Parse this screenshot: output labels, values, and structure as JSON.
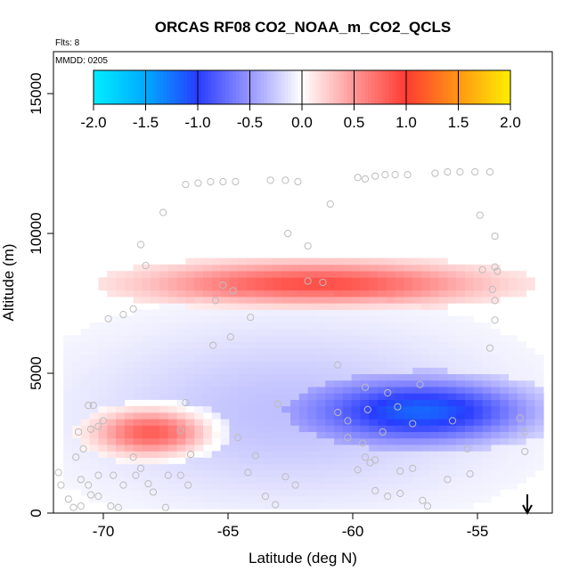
{
  "chart_data": {
    "type": "heatmap",
    "title": "ORCAS RF08 CO2_NOAA_m_CO2_QCLS",
    "flights_label": "Flts: 8",
    "date_label": "MMDD: 0205",
    "xlabel": "Latitude (deg N)",
    "ylabel": "Altitude (m)",
    "xlim": [
      -72,
      -52
    ],
    "ylim": [
      0,
      16500
    ],
    "xticks": [
      -70,
      -65,
      -60,
      -55
    ],
    "xtick_labels": [
      "-70",
      "-65",
      "-60",
      "-55"
    ],
    "yticks": [
      0,
      5000,
      10000,
      15000
    ],
    "ytick_labels": [
      "0",
      "5000",
      "10000",
      "15000"
    ],
    "colorbar": {
      "range": [
        -2.0,
        2.0
      ],
      "ticks": [
        -2.0,
        -1.5,
        -1.0,
        -0.5,
        0.0,
        0.5,
        1.0,
        1.5,
        2.0
      ],
      "tick_labels": [
        "-2.0",
        "-1.5",
        "-1.0",
        "-0.5",
        "0.0",
        "0.5",
        "1.0",
        "1.5",
        "2.0"
      ]
    },
    "marker_lat": -53,
    "features": [
      {
        "name": "upper-positive-band",
        "lat": [
          -68.5,
          -54.5
        ],
        "alt": [
          7400,
          9000
        ],
        "value": 0.9
      },
      {
        "name": "lower-positive-band",
        "lat": [
          -70.5,
          -65.5
        ],
        "alt": [
          2000,
          3800
        ],
        "value": 1.0
      },
      {
        "name": "mid-negative-layer",
        "lat": [
          -61.5,
          -52.5
        ],
        "alt": [
          2500,
          4800
        ],
        "value": -1.0
      },
      {
        "name": "weak-negative-background",
        "lat": [
          -71.5,
          -53.5
        ],
        "alt": [
          200,
          7000
        ],
        "value": -0.3
      }
    ],
    "sample_points": [
      [
        -66.7,
        11750
      ],
      [
        -66.2,
        11800
      ],
      [
        -65.7,
        11850
      ],
      [
        -65.2,
        11850
      ],
      [
        -64.7,
        11850
      ],
      [
        -63.3,
        11900
      ],
      [
        -62.7,
        11900
      ],
      [
        -62.2,
        11850
      ],
      [
        -59.5,
        11950
      ],
      [
        -59.1,
        12050
      ],
      [
        -58.7,
        12100
      ],
      [
        -58.3,
        12100
      ],
      [
        -57.8,
        12100
      ],
      [
        -56.7,
        12150
      ],
      [
        -56.2,
        12200
      ],
      [
        -55.7,
        12200
      ],
      [
        -55.1,
        12200
      ],
      [
        -54.5,
        12200
      ],
      [
        -59.8,
        12000
      ],
      [
        -67.6,
        10750
      ],
      [
        -60.9,
        11050
      ],
      [
        -54.9,
        10650
      ],
      [
        -54.3,
        9900
      ],
      [
        -68.5,
        9600
      ],
      [
        -62.6,
        10000
      ],
      [
        -61.8,
        9550
      ],
      [
        -68.3,
        8850
      ],
      [
        -65.2,
        8150
      ],
      [
        -64.8,
        7950
      ],
      [
        -61.8,
        8300
      ],
      [
        -61.2,
        8250
      ],
      [
        -54.8,
        8700
      ],
      [
        -54.3,
        8800
      ],
      [
        -54.4,
        8000
      ],
      [
        -54.3,
        7600
      ],
      [
        -54.3,
        6900
      ],
      [
        -54.5,
        5900
      ],
      [
        -64.1,
        7000
      ],
      [
        -65.5,
        7600
      ],
      [
        -69.2,
        7100
      ],
      [
        -69.8,
        6950
      ],
      [
        -68.8,
        7300
      ],
      [
        -64.9,
        6300
      ],
      [
        -65.6,
        6000
      ],
      [
        -60.6,
        5300
      ],
      [
        -57.3,
        4600
      ],
      [
        -58.6,
        4300
      ],
      [
        -59.5,
        4500
      ],
      [
        -59.4,
        3700
      ],
      [
        -58.2,
        3800
      ],
      [
        -60.6,
        3600
      ],
      [
        -63.0,
        3900
      ],
      [
        -60.2,
        3300
      ],
      [
        -57.6,
        3200
      ],
      [
        -60.2,
        2700
      ],
      [
        -59.6,
        2500
      ],
      [
        -58.8,
        2900
      ],
      [
        -56.0,
        3300
      ],
      [
        -53.1,
        2900
      ],
      [
        -53.1,
        2200
      ],
      [
        -59.5,
        2000
      ],
      [
        -59.1,
        1900
      ],
      [
        -59.8,
        1550
      ],
      [
        -58.1,
        1500
      ],
      [
        -57.6,
        1600
      ],
      [
        -55.3,
        1400
      ],
      [
        -56.2,
        1200
      ],
      [
        -59.3,
        1800
      ],
      [
        -55.4,
        2300
      ],
      [
        -64.2,
        1450
      ],
      [
        -63.9,
        2050
      ],
      [
        -64.6,
        2700
      ],
      [
        -62.7,
        1300
      ],
      [
        -62.3,
        1000
      ],
      [
        -59.1,
        800
      ],
      [
        -58.6,
        600
      ],
      [
        -58.1,
        700
      ],
      [
        -57.2,
        450
      ],
      [
        -57.0,
        250
      ],
      [
        -63.1,
        300
      ],
      [
        -63.5,
        600
      ],
      [
        -66.5,
        2100
      ],
      [
        -66.6,
        1000
      ],
      [
        -66.9,
        1350
      ],
      [
        -66.7,
        3950
      ],
      [
        -67.4,
        1350
      ],
      [
        -68.2,
        1050
      ],
      [
        -68.7,
        1350
      ],
      [
        -69.2,
        1000
      ],
      [
        -69.6,
        1350
      ],
      [
        -70.2,
        1350
      ],
      [
        -70.6,
        1000
      ],
      [
        -70.5,
        650
      ],
      [
        -70.9,
        1200
      ],
      [
        -71.1,
        2000
      ],
      [
        -70.8,
        2300
      ],
      [
        -70.5,
        3000
      ],
      [
        -70.2,
        3100
      ],
      [
        -70.0,
        3300
      ],
      [
        -70.4,
        3850
      ],
      [
        -70.6,
        3850
      ],
      [
        -71.0,
        2900
      ],
      [
        -71.8,
        1450
      ],
      [
        -71.7,
        1000
      ],
      [
        -71.4,
        500
      ],
      [
        -71.2,
        200
      ],
      [
        -70.9,
        250
      ],
      [
        -69.7,
        250
      ],
      [
        -69.4,
        200
      ],
      [
        -67.5,
        200
      ],
      [
        -68.0,
        750
      ],
      [
        -68.8,
        2000
      ],
      [
        -68.5,
        1600
      ],
      [
        -70.2,
        600
      ],
      [
        -66.9,
        2950
      ],
      [
        -54.2,
        8650
      ],
      [
        -53.3,
        3400
      ]
    ]
  }
}
